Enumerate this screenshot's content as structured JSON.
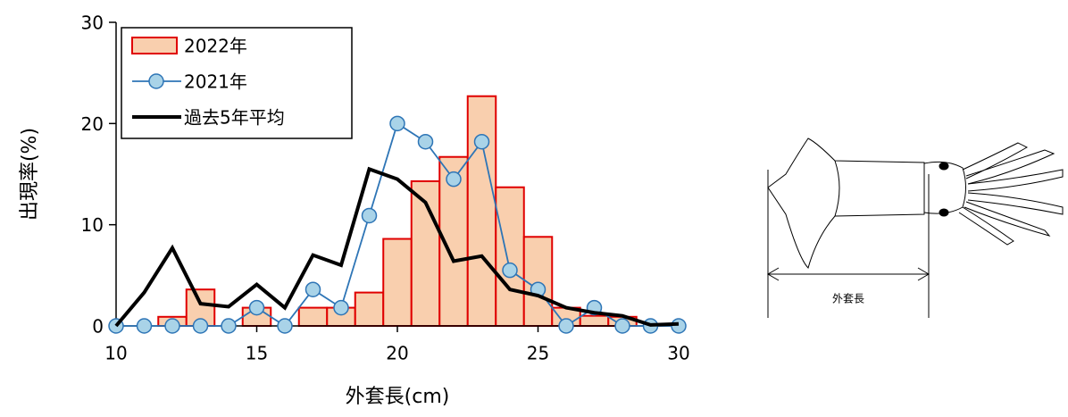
{
  "chart_data": {
    "type": "combo",
    "x": [
      10,
      11,
      12,
      13,
      14,
      15,
      16,
      17,
      18,
      19,
      20,
      21,
      22,
      23,
      24,
      25,
      26,
      27,
      28,
      29,
      30
    ],
    "series": [
      {
        "name": "2022年",
        "type": "bar",
        "color": "#f9cfae",
        "edge_color": "#e00000",
        "values": [
          0,
          0,
          0.9,
          3.6,
          0,
          1.8,
          0,
          1.8,
          1.8,
          3.3,
          8.6,
          14.3,
          16.7,
          22.7,
          13.7,
          8.8,
          1.8,
          1.0,
          0.9,
          0,
          0
        ]
      },
      {
        "name": "2021年",
        "type": "line",
        "color": "#2e75b6",
        "marker_color": "#a9d3e8",
        "values": [
          0,
          0,
          0,
          0,
          0,
          1.8,
          0,
          3.6,
          1.8,
          10.9,
          20.0,
          18.2,
          14.5,
          18.2,
          5.5,
          3.6,
          0,
          1.8,
          0,
          0,
          0
        ]
      },
      {
        "name": "過去5年平均",
        "type": "line",
        "color": "#000000",
        "values": [
          0,
          3.3,
          7.7,
          2.2,
          1.9,
          4.1,
          1.8,
          7.0,
          6.0,
          15.5,
          14.5,
          12.2,
          6.4,
          6.9,
          3.6,
          3.0,
          1.8,
          1.3,
          1.0,
          0.1,
          0.2
        ]
      }
    ],
    "xlabel": "外套長(cm)",
    "ylabel": "出現率(%)",
    "xlim": [
      10,
      30
    ],
    "xticks": [
      10,
      15,
      20,
      25,
      30
    ],
    "ylim": [
      0,
      30
    ],
    "yticks": [
      0,
      10,
      20,
      30
    ],
    "grid": false,
    "legend": "upper left"
  },
  "diagram": {
    "label": "外套長"
  }
}
